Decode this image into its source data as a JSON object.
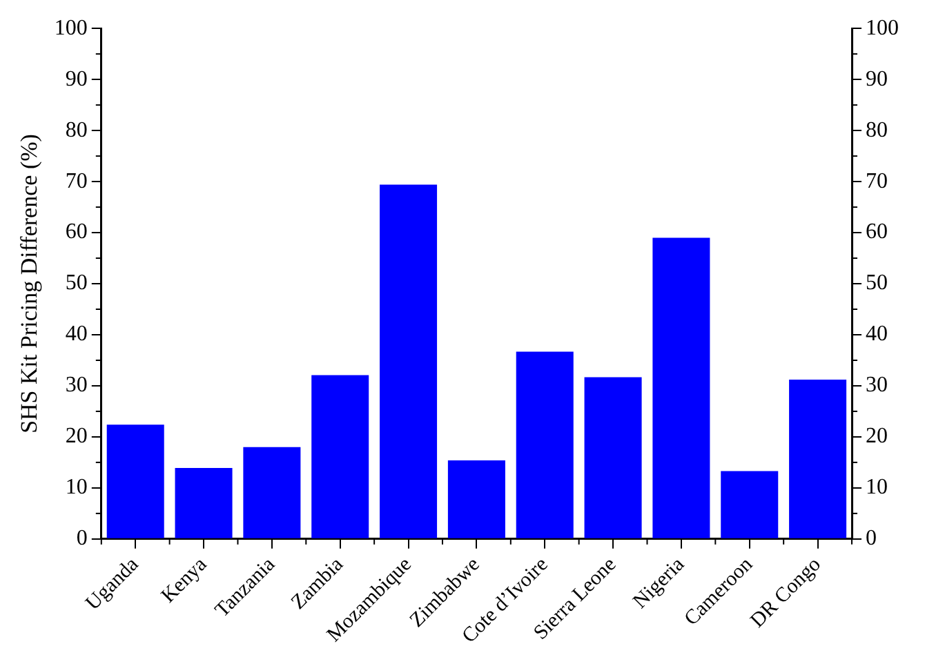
{
  "chart_data": {
    "type": "bar",
    "ylabel": "SHS Kit Pricing Difference (%)",
    "categories": [
      "Uganda",
      "Kenya",
      "Tanzania",
      "Zambia",
      "Mozambique",
      "Zimbabwe",
      "Cote d’Ivoire",
      "Sierra Leone",
      "Nigeria",
      "Cameroon",
      "DR Congo"
    ],
    "values": [
      22.4,
      13.9,
      18.0,
      32.1,
      69.4,
      15.4,
      36.7,
      31.7,
      59.0,
      13.3,
      31.2
    ],
    "color": "#0000ff",
    "ylim": [
      0,
      100
    ],
    "yticks": [
      0,
      10,
      20,
      30,
      40,
      50,
      60,
      70,
      80,
      90,
      100
    ],
    "y2lim": [
      0,
      100
    ],
    "y2ticks": [
      0,
      10,
      20,
      30,
      40,
      50,
      60,
      70,
      80,
      90,
      100
    ],
    "grid": false,
    "legend": false
  }
}
